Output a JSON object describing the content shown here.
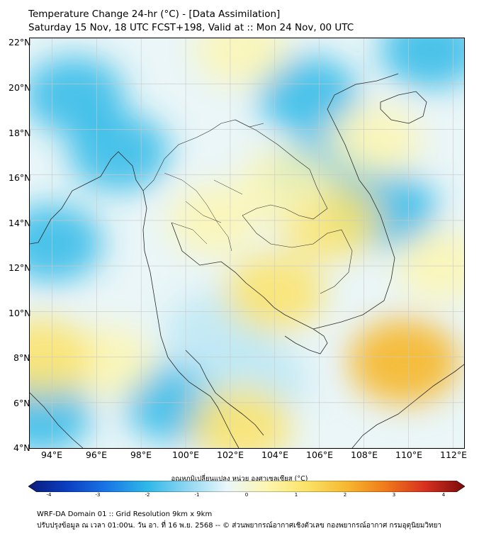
{
  "header": {
    "title_line1": "Temperature Change 24-hr (°C) - [Data Assimilation]",
    "title_line2": "Saturday 15 Nov, 18 UTC FCST+198, Valid at :: Mon 24 Nov, 00 UTC"
  },
  "map": {
    "lat_labels": [
      "22°N",
      "20°N",
      "18°N",
      "16°N",
      "14°N",
      "12°N",
      "10°N",
      "8°N",
      "6°N",
      "4°N"
    ],
    "lon_labels": [
      "94°E",
      "96°E",
      "98°E",
      "100°E",
      "102°E",
      "104°E",
      "106°E",
      "108°E",
      "110°E",
      "112°E"
    ],
    "lat_range": [
      4,
      22
    ],
    "lon_range": [
      93,
      112.5
    ],
    "colors": {
      "cold": "#2fb8e8",
      "cool": "#bde7f5",
      "neutral": "#eef7f7",
      "warm_light": "#fdf6b0",
      "warm": "#fbe368",
      "hot": "#f6b931",
      "land_line": "#2a2a2a",
      "grid": "#c8c8c8"
    },
    "field_anomalies": [
      {
        "lon": 95.0,
        "lat": 19.5,
        "type": "cold"
      },
      {
        "lon": 94.0,
        "lat": 13.0,
        "type": "cold"
      },
      {
        "lon": 97.0,
        "lat": 17.0,
        "type": "cold"
      },
      {
        "lon": 99.5,
        "lat": 6.0,
        "type": "cold"
      },
      {
        "lon": 93.5,
        "lat": 5.5,
        "type": "cold"
      },
      {
        "lon": 105.5,
        "lat": 19.5,
        "type": "cold"
      },
      {
        "lon": 106.0,
        "lat": 16.0,
        "type": "cold"
      },
      {
        "lon": 109.0,
        "lat": 14.5,
        "type": "cold"
      },
      {
        "lon": 111.0,
        "lat": 21.5,
        "type": "cold"
      },
      {
        "lon": 101.5,
        "lat": 9.0,
        "type": "cool"
      },
      {
        "lon": 103.0,
        "lat": 7.0,
        "type": "cool"
      },
      {
        "lon": 106.5,
        "lat": 14.0,
        "type": "warm"
      },
      {
        "lon": 109.8,
        "lat": 7.8,
        "type": "hot"
      },
      {
        "lon": 104.0,
        "lat": 10.8,
        "type": "warm"
      },
      {
        "lon": 102.5,
        "lat": 5.0,
        "type": "warm"
      },
      {
        "lon": 96.5,
        "lat": 7.8,
        "type": "warm_light"
      },
      {
        "lon": 93.5,
        "lat": 8.0,
        "type": "warm"
      },
      {
        "lon": 108.5,
        "lat": 17.5,
        "type": "warm_light"
      },
      {
        "lon": 111.5,
        "lat": 12.0,
        "type": "warm_light"
      },
      {
        "lon": 101.3,
        "lat": 14.0,
        "type": "warm_light"
      },
      {
        "lon": 104.5,
        "lat": 15.6,
        "type": "warm_light"
      },
      {
        "lon": 102.5,
        "lat": 21.5,
        "type": "warm_light"
      }
    ]
  },
  "colorbar": {
    "title": "อุณหภูมิเปลี่ยนแปลง หน่วย องศาเซลเซียส (°C)",
    "ticks": [
      "-4",
      "-3",
      "-2",
      "-1",
      "0",
      "1",
      "2",
      "3",
      "4"
    ],
    "tick_values": [
      -4,
      -3,
      -2,
      -1,
      0,
      1,
      2,
      3,
      4
    ],
    "range": [
      -4,
      4
    ],
    "stops": [
      "#0a1a7a",
      "#0b3fc2",
      "#1a78e6",
      "#2fb8e8",
      "#8fd6f2",
      "#eaf7fb",
      "#fdf6b0",
      "#fbe368",
      "#f6b931",
      "#ef7a1a",
      "#d7301f",
      "#7a0a0a"
    ]
  },
  "footer": {
    "line1": "WRF-DA Domain 01 :: Grid Resolution 9km x 9km",
    "line2": "ปรับปรุงข้อมูล ณ เวลา 01:00น. วัน อา. ที่ 16 พ.ย. 2568 -- © ส่วนพยากรณ์อากาศเชิงตัวเลข กองพยากรณ์อากาศ กรมอุตุนิยมวิทยา"
  }
}
